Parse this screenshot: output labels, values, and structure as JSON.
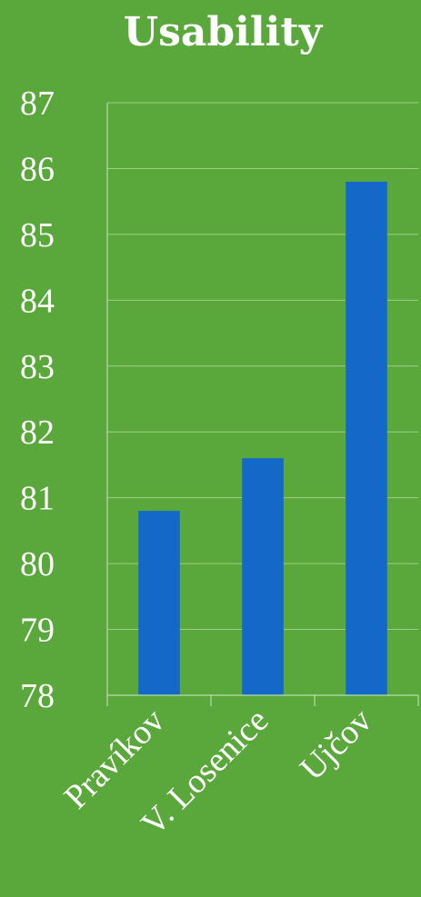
{
  "chart_data": {
    "type": "bar",
    "title": "Usability",
    "categories": [
      "Pravíkov",
      "V. Losenice",
      "Ujčov"
    ],
    "values": [
      80.8,
      81.6,
      85.8
    ],
    "ylim": [
      78,
      87
    ],
    "yticks": [
      "78",
      "79",
      "80",
      "81",
      "82",
      "83",
      "84",
      "85",
      "86",
      "87"
    ],
    "grid": true,
    "legend": "none"
  },
  "colors": {
    "background": "#5aa83c",
    "bar": "#1469c8",
    "text": "#ffffff",
    "grid": "#9ccf86"
  }
}
